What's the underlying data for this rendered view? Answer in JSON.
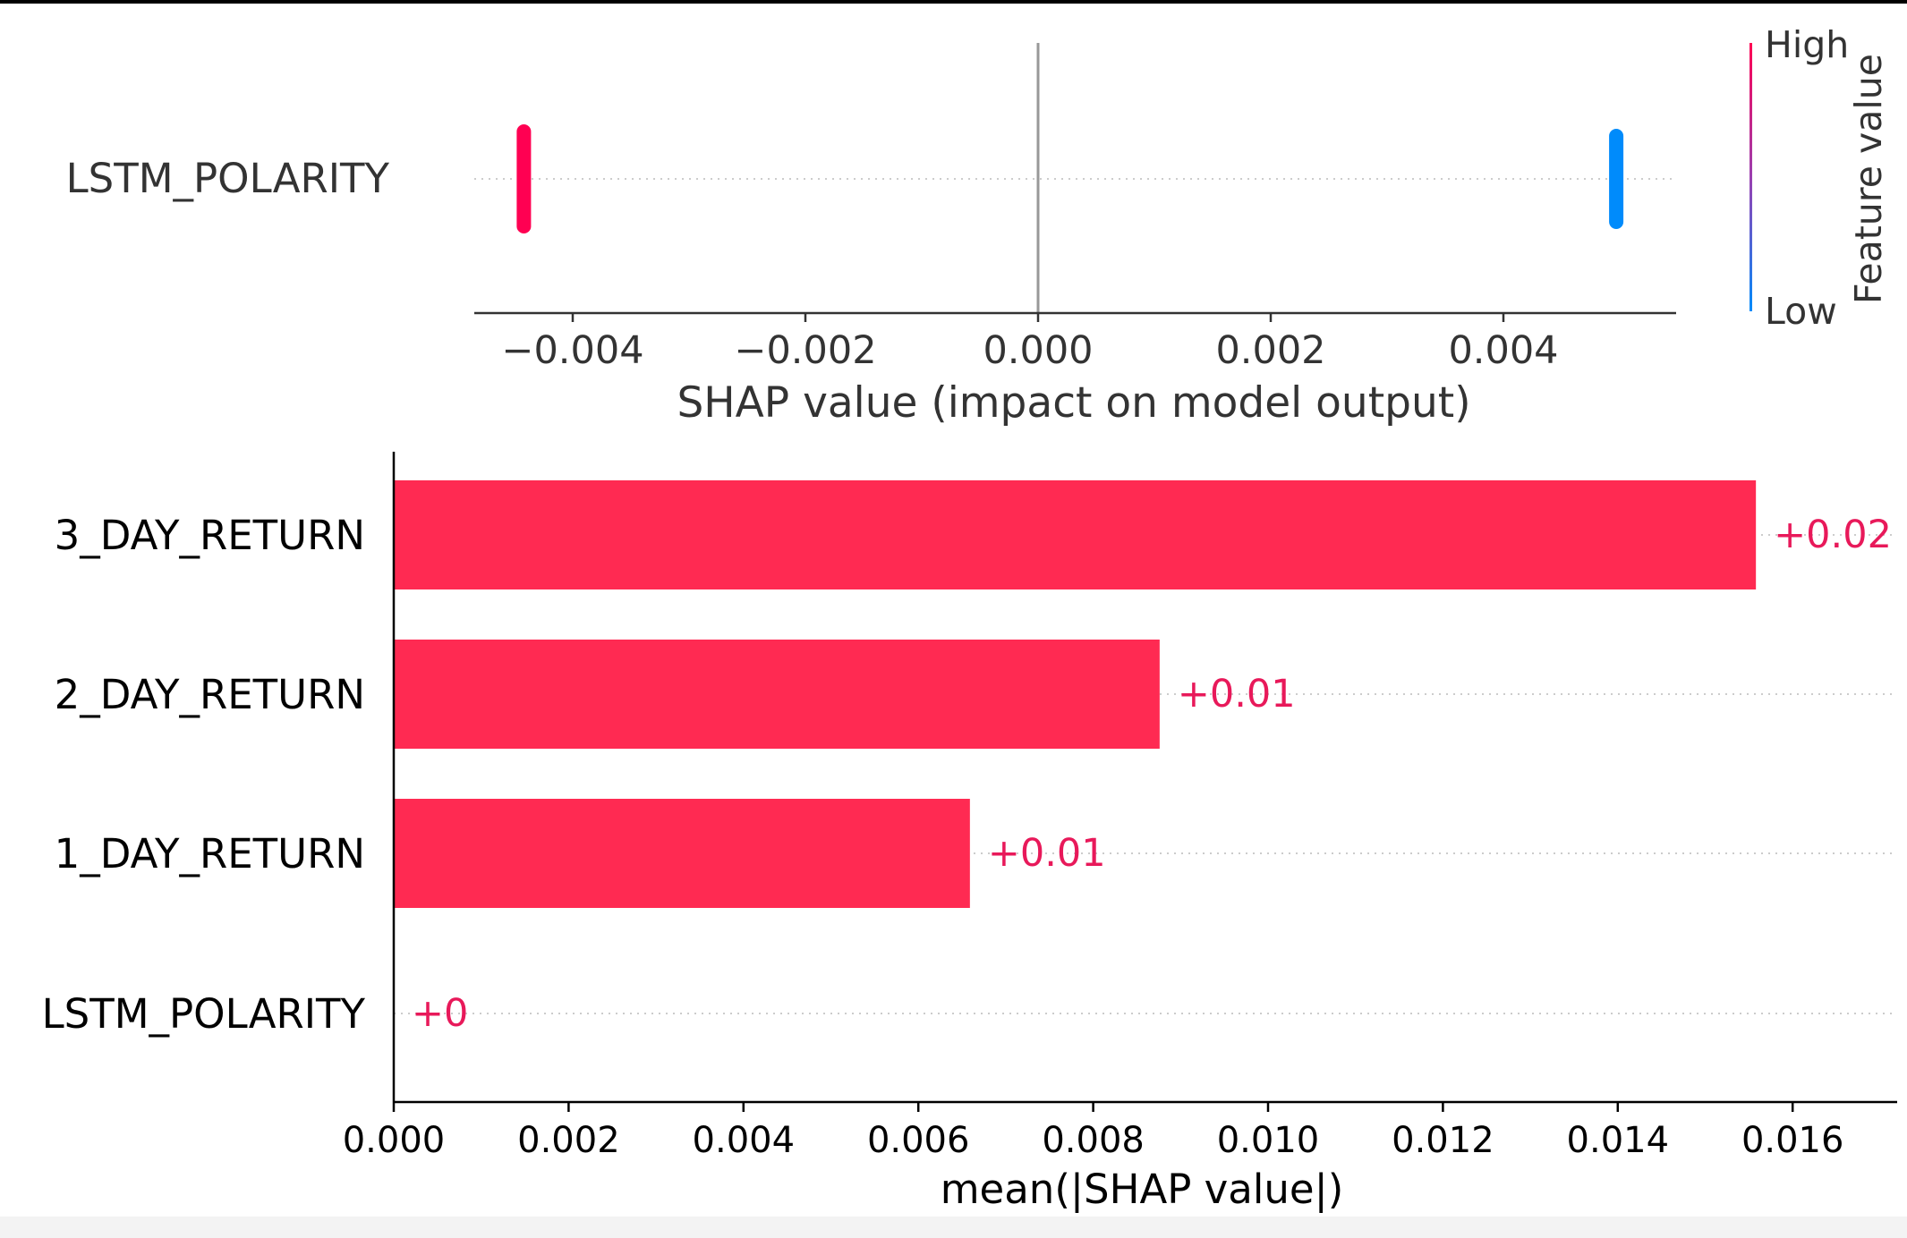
{
  "chart_data": [
    {
      "type": "scatter",
      "subtype": "shap-beeswarm",
      "features": [
        "LSTM_POLARITY"
      ],
      "points": [
        {
          "feature": "LSTM_POLARITY",
          "shap_value": -0.00442,
          "feature_value_level": "high"
        },
        {
          "feature": "LSTM_POLARITY",
          "shap_value": 0.00497,
          "feature_value_level": "low"
        }
      ],
      "xlabel": "SHAP value (impact on model output)",
      "xlim": [
        -0.0048,
        0.0055
      ],
      "xticks": [
        -0.004,
        -0.002,
        0.0,
        0.002,
        0.004
      ],
      "xtick_labels": [
        "−0.004",
        "−0.002",
        "0.000",
        "0.002",
        "0.004"
      ],
      "colorbar": {
        "label": "Feature value",
        "high_label": "High",
        "low_label": "Low",
        "high_color": "#ff0052",
        "low_color": "#008bfb"
      },
      "grid": "dotted horizontal line per feature",
      "legend": "colorbar at right"
    },
    {
      "type": "bar",
      "orientation": "horizontal",
      "categories": [
        "3_DAY_RETURN",
        "2_DAY_RETURN",
        "1_DAY_RETURN",
        "LSTM_POLARITY"
      ],
      "values": [
        0.01558,
        0.00876,
        0.00659,
        0.0
      ],
      "value_labels": [
        "+0.02",
        "+0.01",
        "+0.01",
        "+0"
      ],
      "xlabel": "mean(|SHAP value|)",
      "xlim": [
        0,
        0.0172
      ],
      "xticks": [
        0.0,
        0.002,
        0.004,
        0.006,
        0.008,
        0.01,
        0.012,
        0.014,
        0.016
      ],
      "xtick_labels": [
        "0.000",
        "0.002",
        "0.004",
        "0.006",
        "0.008",
        "0.010",
        "0.012",
        "0.014",
        "0.016"
      ],
      "bar_color": "#ff2a52",
      "label_color": "#e8195a",
      "grid": "dotted horizontal line per category"
    }
  ]
}
